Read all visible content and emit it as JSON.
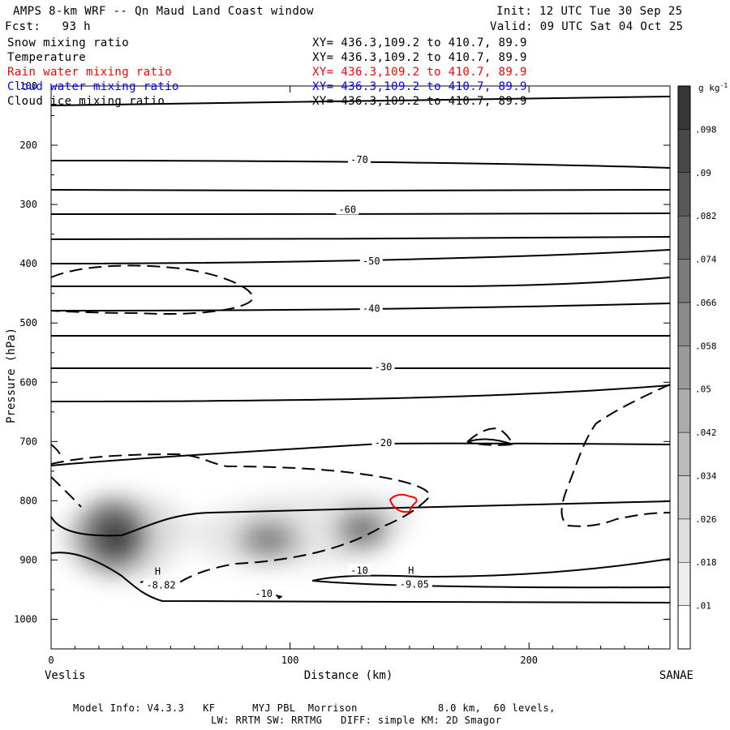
{
  "header": {
    "title": "AMPS 8-km WRF -- Qn Maud Land Coast window",
    "init": "Init: 12 UTC Tue 30 Sep 25",
    "fcst": "Fcst:   93 h",
    "valid": "Valid: 09 UTC Sat 04 Oct 25"
  },
  "fields": [
    {
      "name": "Snow mixing ratio",
      "xy": "XY= 436.3,109.2 to 410.7, 89.9",
      "color": "#000000"
    },
    {
      "name": "Temperature",
      "xy": "XY= 436.3,109.2 to 410.7, 89.9",
      "color": "#000000"
    },
    {
      "name": "Rain water mixing ratio",
      "xy": "XY= 436.3,109.2 to 410.7, 89.9",
      "color": "#ff0000"
    },
    {
      "name": "Cloud water mixing ratio",
      "xy": "XY= 436.3,109.2 to 410.7, 89.9",
      "color": "#0000ff"
    },
    {
      "name": "Cloud ice mixing ratio",
      "xy": "XY= 436.3,109.2 to 410.7, 89.9",
      "color": "#000000"
    }
  ],
  "footer": {
    "line1": "Model Info: V4.3.3   KF      MYJ PBL  Morrison             8.0 km,  60 levels,",
    "line2": "LW: RRTM SW: RRTMG   DIFF: simple KM: 2D Smagor"
  },
  "chart_data": {
    "type": "cross-section",
    "xlabel": "Distance (km)",
    "ylabel": "Pressure (hPa)",
    "xlim": [
      0,
      259
    ],
    "ylim": [
      1050,
      100
    ],
    "x_ticks": [
      0,
      100,
      200
    ],
    "y_ticks": [
      100,
      200,
      300,
      400,
      500,
      600,
      700,
      800,
      900,
      1000
    ],
    "left_endpoint": "Veslis",
    "right_endpoint": "SANAE",
    "colorbar": {
      "unit": "g kg",
      "unit_exp": "-1",
      "ticks": [
        ".01",
        ".018",
        ".026",
        ".034",
        ".042",
        ".05",
        ".058",
        ".066",
        ".074",
        ".082",
        ".09",
        ".098"
      ]
    },
    "isotherm_labels": [
      {
        "text": "-70",
        "x": 129,
        "p": 226
      },
      {
        "text": "-60",
        "x": 124,
        "p": 310
      },
      {
        "text": "-50",
        "x": 134,
        "p": 397
      },
      {
        "text": "-40",
        "x": 134,
        "p": 477
      },
      {
        "text": "-30",
        "x": 139,
        "p": 576
      },
      {
        "text": "-20",
        "x": 139,
        "p": 704
      },
      {
        "text": "-10",
        "x": 129,
        "p": 919
      },
      {
        "text": "-10",
        "x": 89,
        "p": 958
      }
    ],
    "extrema_labels": [
      {
        "letter": "H",
        "value": "-8.82",
        "x": 46,
        "p": 941
      },
      {
        "letter": "H",
        "value": "-9.05",
        "x": 152,
        "p": 940
      }
    ],
    "snow_max": [
      {
        "x": 25,
        "p": 858
      },
      {
        "x": 90,
        "p": 868
      },
      {
        "x": 130,
        "p": 848
      }
    ]
  }
}
